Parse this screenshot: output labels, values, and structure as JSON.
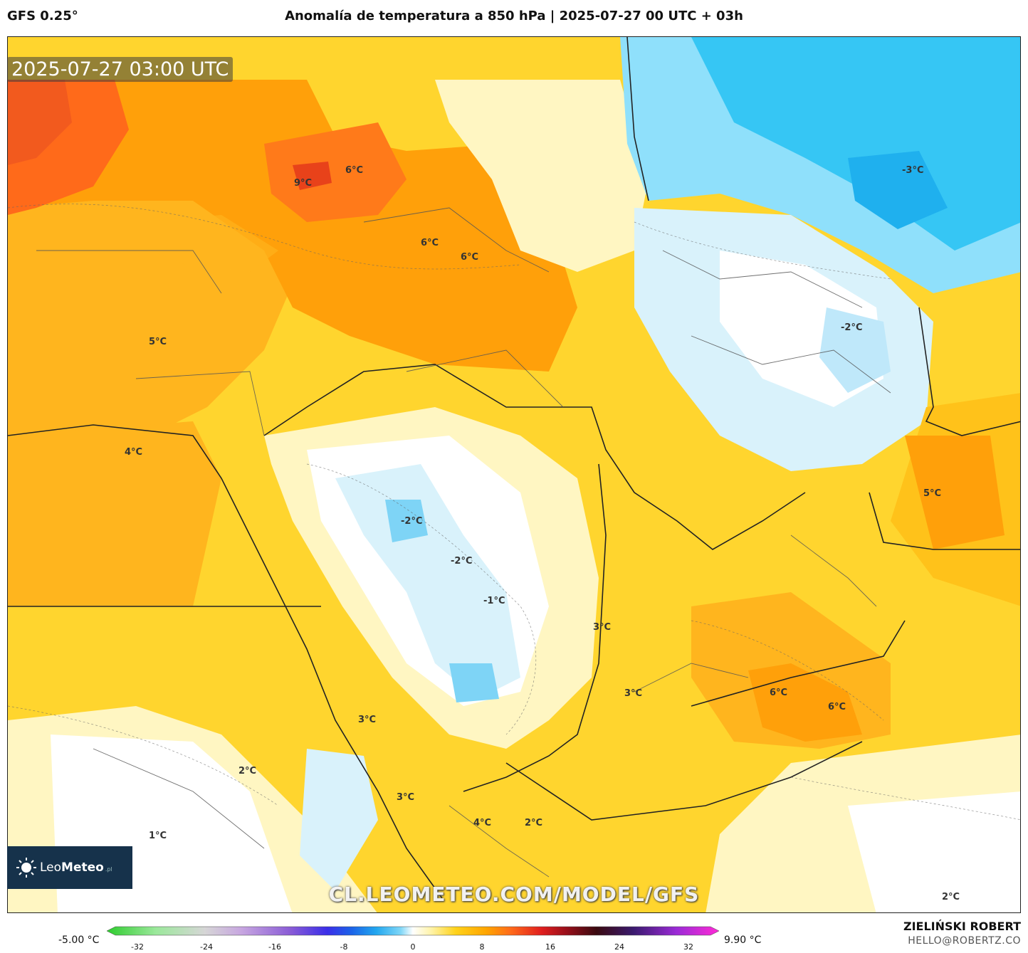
{
  "header": {
    "model": "GFS 0.25°",
    "title": "Anomalía de temperatura a 850 hPa | 2025-07-27 00 UTC + 03h"
  },
  "timestamp": "2025-07-27 03:00 UTC",
  "map_labels": [
    "6°C",
    "9°C",
    "6°C",
    "6°C",
    "-3°C",
    "5°C",
    "-2°C",
    "4°C",
    "-2°C",
    "-2°C",
    "-1°C",
    "5°C",
    "3°C",
    "3°C",
    "3°C",
    "6°C",
    "6°C",
    "2°C",
    "3°C",
    "1°C",
    "4°C",
    "2°C",
    "2°C"
  ],
  "logo": {
    "name_light": "Leo",
    "name_bold": "Meteo",
    "suffix": ".pl"
  },
  "watermark": "CL.LEOMETEO.COM/MODEL/GFS",
  "colorbar": {
    "min_label": "-5.00 °C",
    "max_label": "9.90 °C",
    "ticks": [
      "-32",
      "-24",
      "-16",
      "-8",
      "0",
      "8",
      "16",
      "24",
      "32"
    ],
    "colors": [
      "#2ecc2e",
      "#9be89b",
      "#d6d6d6",
      "#c7a6e0",
      "#8a5cd6",
      "#3b2ee8",
      "#1b63e8",
      "#22a7ef",
      "#7fd6f7",
      "#ffffff",
      "#fff3a8",
      "#ffd21a",
      "#ffa500",
      "#ff6a1a",
      "#e01e1e",
      "#9a0f1a",
      "#3a0a10",
      "#3a1a6e",
      "#9a2ad6",
      "#ff2ad6"
    ]
  },
  "credits": {
    "author": "ZIELIŃSKI ROBERT",
    "email": "HELLO@ROBERTZ.CO"
  }
}
